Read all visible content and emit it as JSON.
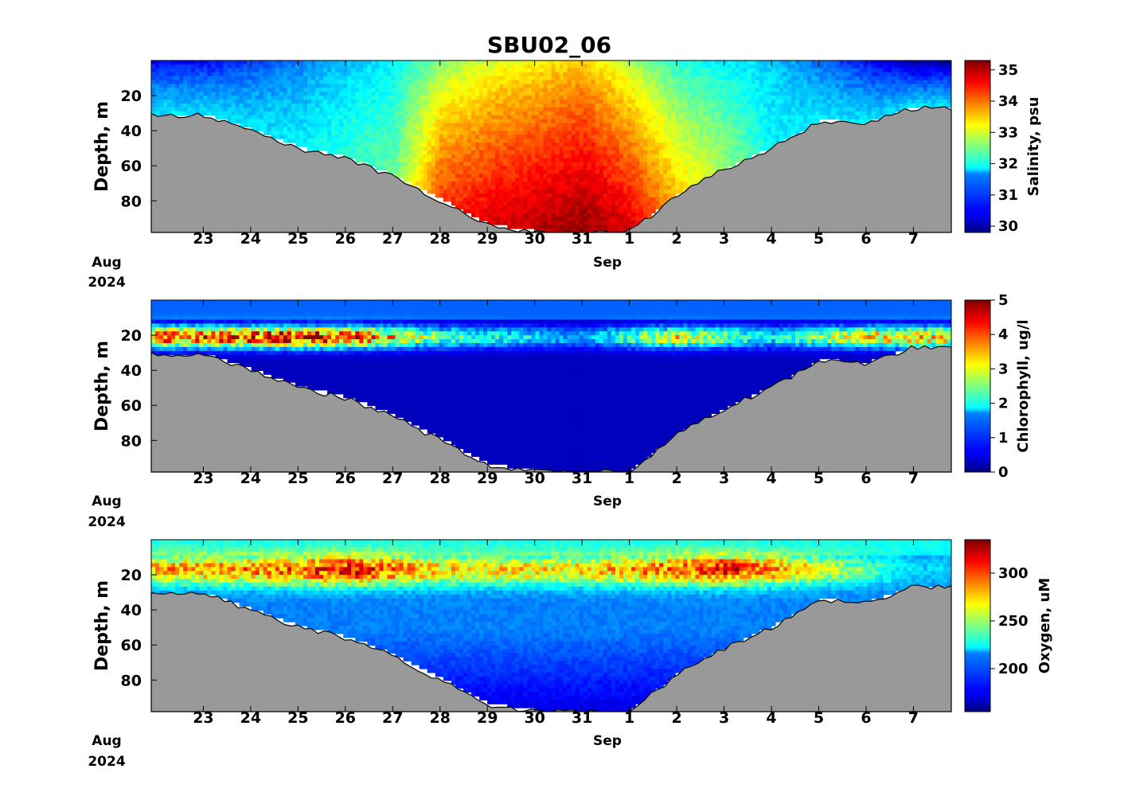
{
  "chart_data": {
    "title": "SBU02_06",
    "type": "heatmap",
    "x_ticks": [
      "23",
      "24",
      "25",
      "26",
      "27",
      "28",
      "29",
      "30",
      "31",
      "1",
      "2",
      "3",
      "4",
      "5",
      "6",
      "7"
    ],
    "x_month_labels": [
      {
        "label": "Aug",
        "year": "2024"
      },
      {
        "label": "Sep",
        "year": ""
      }
    ],
    "x_start_date": "2024-08-22",
    "x_end_date": "2024-09-07",
    "y_ticks": [
      "20",
      "40",
      "60",
      "80"
    ],
    "ylim": [
      98,
      0
    ],
    "ylabel": "Depth, m",
    "bathymetry_depth_m": [
      {
        "date": "2024-08-23",
        "depth": 31
      },
      {
        "date": "2024-08-24",
        "depth": 40
      },
      {
        "date": "2024-08-25",
        "depth": 50
      },
      {
        "date": "2024-08-26",
        "depth": 56
      },
      {
        "date": "2024-08-27",
        "depth": 66
      },
      {
        "date": "2024-08-28",
        "depth": 80
      },
      {
        "date": "2024-08-29",
        "depth": 94
      },
      {
        "date": "2024-08-30",
        "depth": 98
      },
      {
        "date": "2024-08-31",
        "depth": 98
      },
      {
        "date": "2024-09-01",
        "depth": 98
      },
      {
        "date": "2024-09-02",
        "depth": 77
      },
      {
        "date": "2024-09-03",
        "depth": 62
      },
      {
        "date": "2024-09-04",
        "depth": 50
      },
      {
        "date": "2024-09-05",
        "depth": 35
      },
      {
        "date": "2024-09-06",
        "depth": 36
      },
      {
        "date": "2024-09-07",
        "depth": 27
      }
    ],
    "panels": [
      {
        "variable": "salinity",
        "colorbar_label": "Salinity, psu",
        "colorbar_ticks": [
          "30",
          "31",
          "32",
          "33",
          "34",
          "35"
        ],
        "clim": [
          29.8,
          35.3
        ],
        "colormap": "jet",
        "profile_by_day": [
          {
            "date": "2024-08-23",
            "surface": 30.5,
            "bottom": 31.7
          },
          {
            "date": "2024-08-25",
            "surface": 31.2,
            "bottom": 31.8
          },
          {
            "date": "2024-08-27",
            "surface": 31.8,
            "bottom": 32.4
          },
          {
            "date": "2024-08-28",
            "surface": 32.6,
            "bottom": 34.3
          },
          {
            "date": "2024-08-29",
            "surface": 33.0,
            "bottom": 34.8
          },
          {
            "date": "2024-08-31",
            "surface": 33.5,
            "bottom": 35.2
          },
          {
            "date": "2024-09-01",
            "surface": 32.8,
            "bottom": 34.8
          },
          {
            "date": "2024-09-02",
            "surface": 32.0,
            "bottom": 33.5
          },
          {
            "date": "2024-09-04",
            "surface": 31.6,
            "bottom": 31.8
          },
          {
            "date": "2024-09-07",
            "surface": 30.0,
            "bottom": 31.7
          }
        ]
      },
      {
        "variable": "chlorophyll",
        "colorbar_label": "Chlorophyll, ug/l",
        "colorbar_ticks": [
          "0",
          "1",
          "2",
          "3",
          "4",
          "5"
        ],
        "clim": [
          0,
          5
        ],
        "colormap": "jet",
        "subsurface_maximum_depth_m": 20,
        "maximum_by_day": [
          {
            "date": "2024-08-23",
            "value": 4.5
          },
          {
            "date": "2024-08-25",
            "value": 5.0
          },
          {
            "date": "2024-08-26",
            "value": 4.6
          },
          {
            "date": "2024-08-28",
            "value": 2.5
          },
          {
            "date": "2024-08-31",
            "value": 1.5
          },
          {
            "date": "2024-09-02",
            "value": 3.5
          },
          {
            "date": "2024-09-04",
            "value": 2.0
          },
          {
            "date": "2024-09-06",
            "value": 3.6
          }
        ],
        "background_value": 0.3
      },
      {
        "variable": "oxygen",
        "colorbar_label": "Oxygen, uM",
        "colorbar_ticks": [
          "200",
          "250",
          "300"
        ],
        "clim": [
          155,
          335
        ],
        "colormap": "jet",
        "subsurface_maximum_depth_m": 16,
        "maximum_by_day": [
          {
            "date": "2024-08-23",
            "value": 285
          },
          {
            "date": "2024-08-25",
            "value": 300
          },
          {
            "date": "2024-08-26",
            "value": 320
          },
          {
            "date": "2024-08-28",
            "value": 275
          },
          {
            "date": "2024-08-31",
            "value": 275
          },
          {
            "date": "2024-09-02",
            "value": 300
          },
          {
            "date": "2024-09-03",
            "value": 320
          },
          {
            "date": "2024-09-05",
            "value": 265
          },
          {
            "date": "2024-09-07",
            "value": 215
          }
        ],
        "deep_value": 200
      }
    ]
  }
}
